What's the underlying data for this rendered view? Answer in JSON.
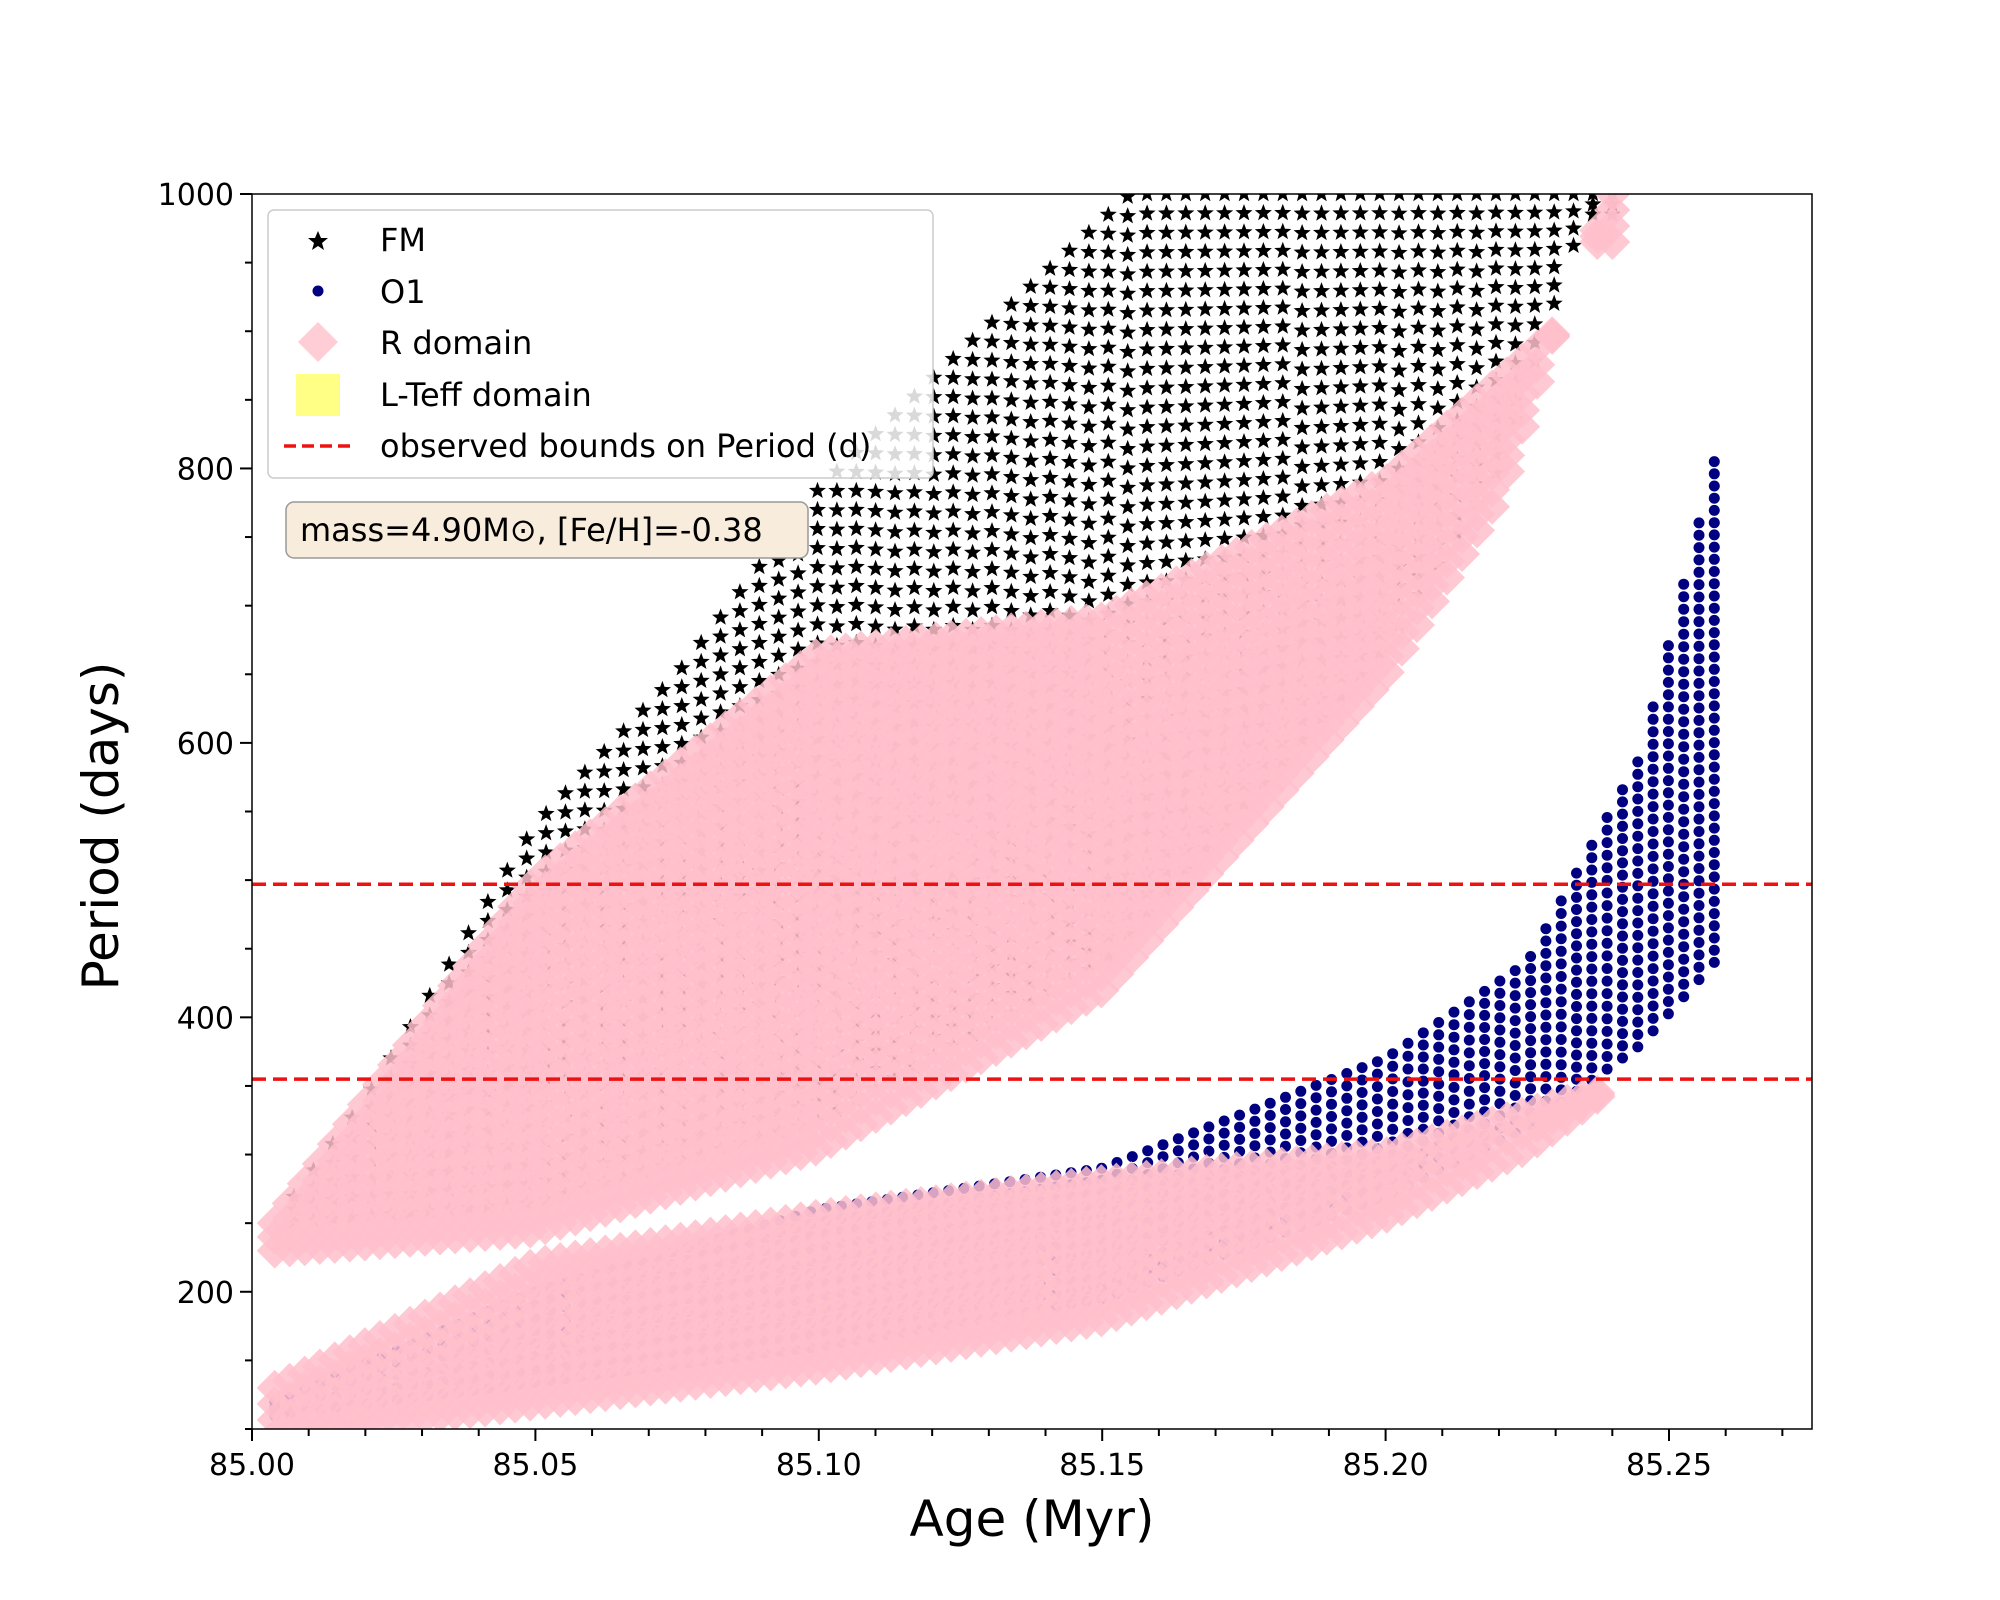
{
  "chart_data": {
    "type": "scatter",
    "title": "",
    "xlabel": "Age (Myr)",
    "ylabel": "Period (days)",
    "xlim": [
      85.0,
      85.27
    ],
    "ylim": [
      100,
      1000
    ],
    "x_ticks": [
      "85.00",
      "85.05",
      "85.10",
      "85.15",
      "85.20",
      "85.25"
    ],
    "x_tick_values": [
      85.0,
      85.05,
      85.1,
      85.15,
      85.2,
      85.25
    ],
    "x_minor_step": 0.01,
    "y_ticks": [
      "200",
      "400",
      "600",
      "800",
      "1000"
    ],
    "y_tick_values": [
      200,
      400,
      600,
      800,
      1000
    ],
    "y_minor_step": 50,
    "grid": false,
    "legend_position": "top-left",
    "legend": [
      {
        "label": "FM",
        "marker": "star",
        "color": "#000000"
      },
      {
        "label": "O1",
        "marker": "circle",
        "color": "#000080"
      },
      {
        "label": "R domain",
        "marker": "diamond",
        "color": "#ffc0cb"
      },
      {
        "label": "L-Teff domain",
        "marker": "square",
        "color": "#ffff66"
      },
      {
        "label": "observed bounds on Period (d)",
        "marker": "dashed-line",
        "color": "#ee1111"
      }
    ],
    "annotation": "mass=4.90M⊙, [Fe/H]=-0.38",
    "annotation_bg": "#f8ecdc",
    "hlines": [
      {
        "y": 497,
        "style": "dashed",
        "color": "#ee1111"
      },
      {
        "y": 355,
        "style": "dashed",
        "color": "#ee1111"
      }
    ],
    "series": [
      {
        "name": "FM",
        "marker": "star",
        "color": "#000000",
        "x_range": [
          85.004,
          85.24
        ],
        "lower_envelope": [
          [
            85.004,
            250
          ],
          [
            85.05,
            265
          ],
          [
            85.1,
            325
          ],
          [
            85.15,
            440
          ],
          [
            85.2,
            670
          ],
          [
            85.22,
            800
          ],
          [
            85.235,
            985
          ]
        ],
        "upper_envelope": [
          [
            85.004,
            250
          ],
          [
            85.02,
            340
          ],
          [
            85.05,
            540
          ],
          [
            85.075,
            650
          ],
          [
            85.1,
            785
          ],
          [
            85.125,
            885
          ],
          [
            85.155,
            1000
          ]
        ]
      },
      {
        "name": "O1",
        "marker": "circle",
        "color": "#000080",
        "x_range": [
          85.004,
          85.258
        ],
        "lower_envelope": [
          [
            85.004,
            110
          ],
          [
            85.1,
            160
          ],
          [
            85.15,
            195
          ],
          [
            85.2,
            270
          ],
          [
            85.225,
            320
          ],
          [
            85.245,
            380
          ],
          [
            85.258,
            440
          ]
        ],
        "upper_envelope": [
          [
            85.004,
            120
          ],
          [
            85.05,
            200
          ],
          [
            85.1,
            260
          ],
          [
            85.15,
            290
          ],
          [
            85.2,
            370
          ],
          [
            85.225,
            440
          ],
          [
            85.245,
            590
          ],
          [
            85.258,
            805
          ]
        ]
      },
      {
        "name": "R domain",
        "marker": "diamond",
        "color": "#ffc0cb",
        "note": "covers FM band up to ~670 d and O1 band up to ~360 d",
        "fm_upper_cut": [
          [
            85.004,
            250
          ],
          [
            85.05,
            500
          ],
          [
            85.1,
            665
          ],
          [
            85.15,
            690
          ],
          [
            85.2,
            790
          ],
          [
            85.23,
            900
          ],
          [
            85.24,
            1000
          ]
        ],
        "o1_upper_cut": [
          [
            85.004,
            130
          ],
          [
            85.05,
            220
          ],
          [
            85.1,
            255
          ],
          [
            85.15,
            280
          ],
          [
            85.2,
            300
          ],
          [
            85.25,
            360
          ]
        ]
      }
    ]
  }
}
